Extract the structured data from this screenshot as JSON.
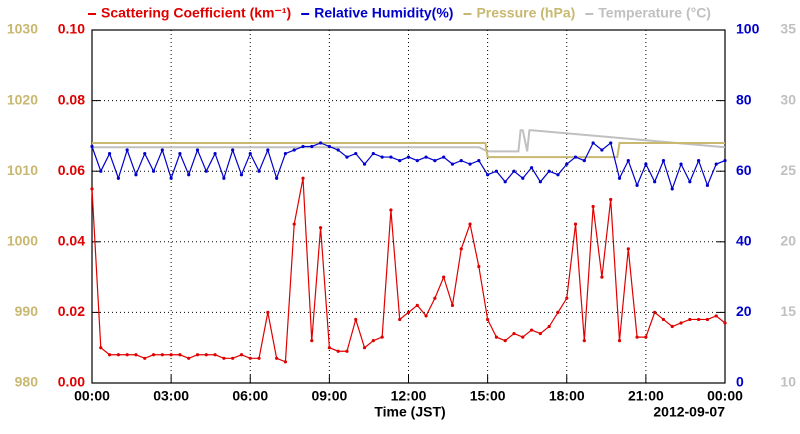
{
  "chart_data": {
    "type": "line",
    "xlabel": "Time (JST)",
    "date_label": "2012-09-07",
    "xlim": [
      0,
      1440
    ],
    "xticks": [
      {
        "value": 0,
        "label": "00:00"
      },
      {
        "value": 180,
        "label": "03:00"
      },
      {
        "value": 360,
        "label": "06:00"
      },
      {
        "value": 540,
        "label": "09:00"
      },
      {
        "value": 720,
        "label": "12:00"
      },
      {
        "value": 900,
        "label": "15:00"
      },
      {
        "value": 1080,
        "label": "18:00"
      },
      {
        "value": 1260,
        "label": "21:00"
      },
      {
        "value": 1440,
        "label": "00:00"
      }
    ],
    "ylim": [
      0,
      0.1
    ],
    "yticks": [
      {
        "value": 0,
        "label": "0.00"
      },
      {
        "value": 0.02,
        "label": "0.02"
      },
      {
        "value": 0.04,
        "label": "0.04"
      },
      {
        "value": 0.06,
        "label": "0.06"
      },
      {
        "value": 0.08,
        "label": "0.08"
      },
      {
        "value": 0.1,
        "label": "0.10"
      }
    ],
    "y2lim": [
      0,
      100
    ],
    "y2ticks": [
      0,
      20,
      40,
      60,
      80,
      100
    ],
    "y3lim": [
      980,
      1030
    ],
    "y3ticks": [
      980,
      990,
      1000,
      1010,
      1020,
      1030
    ],
    "y4lim": [
      10,
      35
    ],
    "y4ticks": [
      10,
      15,
      20,
      25,
      30,
      35
    ],
    "grid": true,
    "series": [
      {
        "name": "Scattering Coefficient (km⁻¹)",
        "color": "#e00000",
        "axis": "y",
        "markers": true,
        "x": [
          0,
          20,
          40,
          60,
          80,
          100,
          120,
          140,
          160,
          180,
          200,
          220,
          240,
          260,
          280,
          300,
          320,
          340,
          360,
          380,
          400,
          420,
          440,
          460,
          480,
          500,
          520,
          540,
          560,
          580,
          600,
          620,
          640,
          660,
          680,
          700,
          720,
          740,
          760,
          780,
          800,
          820,
          840,
          860,
          880,
          900,
          920,
          940,
          960,
          980,
          1000,
          1020,
          1040,
          1060,
          1080,
          1100,
          1120,
          1140,
          1160,
          1180,
          1200,
          1220,
          1240,
          1260,
          1280,
          1300,
          1320,
          1340,
          1360,
          1380,
          1400,
          1420,
          1440
        ],
        "values": [
          0.055,
          0.01,
          0.008,
          0.008,
          0.008,
          0.008,
          0.007,
          0.008,
          0.008,
          0.008,
          0.008,
          0.007,
          0.008,
          0.008,
          0.008,
          0.007,
          0.007,
          0.008,
          0.007,
          0.007,
          0.02,
          0.007,
          0.006,
          0.045,
          0.058,
          0.012,
          0.044,
          0.01,
          0.009,
          0.009,
          0.018,
          0.01,
          0.012,
          0.013,
          0.049,
          0.018,
          0.02,
          0.022,
          0.019,
          0.024,
          0.03,
          0.022,
          0.038,
          0.045,
          0.033,
          0.018,
          0.013,
          0.012,
          0.014,
          0.013,
          0.015,
          0.014,
          0.016,
          0.02,
          0.024,
          0.045,
          0.012,
          0.05,
          0.03,
          0.052,
          0.012,
          0.038,
          0.013,
          0.013,
          0.02,
          0.018,
          0.016,
          0.017,
          0.018,
          0.018,
          0.018,
          0.019,
          0.017
        ]
      },
      {
        "name": "Relative Humidity(%)",
        "color": "#0000cc",
        "axis": "y2",
        "markers": true,
        "x": [
          0,
          20,
          40,
          60,
          80,
          100,
          120,
          140,
          160,
          180,
          200,
          220,
          240,
          260,
          280,
          300,
          320,
          340,
          360,
          380,
          400,
          420,
          440,
          460,
          480,
          500,
          520,
          540,
          560,
          580,
          600,
          620,
          640,
          660,
          680,
          700,
          720,
          740,
          760,
          780,
          800,
          820,
          840,
          860,
          880,
          900,
          920,
          940,
          960,
          980,
          1000,
          1020,
          1040,
          1060,
          1080,
          1100,
          1120,
          1140,
          1160,
          1180,
          1200,
          1220,
          1240,
          1260,
          1280,
          1300,
          1320,
          1340,
          1360,
          1380,
          1400,
          1420,
          1440
        ],
        "values": [
          67,
          60,
          65,
          58,
          66,
          59,
          65,
          60,
          66,
          58,
          65,
          59,
          66,
          60,
          65,
          58,
          66,
          59,
          65,
          60,
          66,
          58,
          65,
          66,
          67,
          67,
          68,
          67,
          66,
          64,
          65,
          62,
          65,
          64,
          64,
          63,
          64,
          63,
          64,
          63,
          64,
          62,
          63,
          62,
          63,
          59,
          60,
          57,
          60,
          58,
          61,
          57,
          60,
          59,
          62,
          64,
          63,
          68,
          66,
          68,
          58,
          63,
          56,
          62,
          57,
          63,
          55,
          62,
          57,
          63,
          56,
          62,
          63
        ]
      },
      {
        "name": "Pressure (hPa)",
        "color": "#c8b870",
        "axis": "y3",
        "markers": false,
        "x": [
          0,
          895,
          900,
          1195,
          1200,
          1440
        ],
        "values": [
          1014,
          1014,
          1012,
          1012,
          1014,
          1014
        ]
      },
      {
        "name": "Temperature (°C)",
        "color": "#c0c0c0",
        "axis": "y4",
        "markers": false,
        "x": [
          0,
          880,
          900,
          970,
          975,
          980,
          990,
          995,
          1000,
          1440
        ],
        "values": [
          26.7,
          26.7,
          26.4,
          26.4,
          27.9,
          27.9,
          26.4,
          27.9,
          27.9,
          26.7
        ]
      }
    ]
  }
}
